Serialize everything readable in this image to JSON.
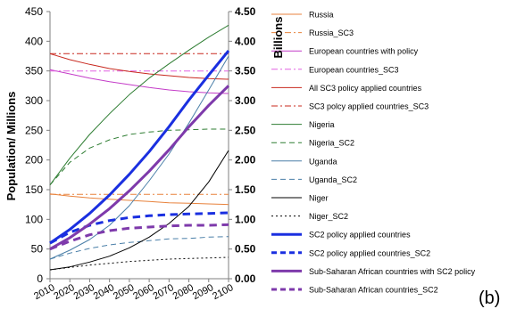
{
  "panel_label": "(b)",
  "chart_data": {
    "type": "line",
    "title": "",
    "xlabel": "",
    "ylabel": "Population/ Millions",
    "ylabel_right": "Billions",
    "x_ticks": [
      2010,
      2020,
      2030,
      2040,
      2050,
      2060,
      2070,
      2080,
      2090,
      2100
    ],
    "xlim": [
      2010,
      2100
    ],
    "ylim": [
      0,
      450
    ],
    "ylim_right": [
      0,
      4.5
    ],
    "y_ticks": [
      "0",
      "50",
      "100",
      "150",
      "200",
      "250",
      "300",
      "350",
      "400",
      "450"
    ],
    "y_ticks_right": [
      "0.00",
      "0.50",
      "1.00",
      "1.50",
      "2.00",
      "2.50",
      "3.00",
      "3.50",
      "4.00",
      "4.50"
    ],
    "grid": false,
    "legend_position": "right",
    "x": [
      2010,
      2020,
      2030,
      2040,
      2050,
      2060,
      2070,
      2080,
      2090,
      2100
    ],
    "series": [
      {
        "name": "Russia",
        "axis": "left",
        "color": "#e8823c",
        "dash": "solid",
        "width": 1,
        "values": [
          143,
          139,
          136,
          134,
          132,
          130,
          128,
          127,
          126,
          125
        ]
      },
      {
        "name": "Russia_SC3",
        "axis": "left",
        "color": "#e8823c",
        "dash": "dashdot",
        "width": 1,
        "values": [
          142,
          142,
          142,
          142,
          142,
          142,
          142,
          142,
          142,
          142
        ]
      },
      {
        "name": "European countries with policy",
        "axis": "left",
        "color": "#c43cc8",
        "dash": "solid",
        "width": 1,
        "values": [
          352,
          345,
          338,
          332,
          327,
          322,
          318,
          315,
          313,
          312
        ]
      },
      {
        "name": "European countries_SC3",
        "axis": "left",
        "color": "#e060e0",
        "dash": "dashdot",
        "width": 1,
        "values": [
          350,
          350,
          350,
          350,
          350,
          350,
          350,
          350,
          350,
          350
        ]
      },
      {
        "name": "All SC3 policy applied countries",
        "axis": "left",
        "color": "#c8281e",
        "dash": "solid",
        "width": 1,
        "values": [
          379,
          369,
          361,
          354,
          349,
          345,
          342,
          339,
          337,
          336
        ]
      },
      {
        "name": "SC3 polcy applied countries_SC3",
        "axis": "left",
        "color": "#c8281e",
        "dash": "dashdot",
        "width": 1,
        "values": [
          379,
          379,
          379,
          379,
          379,
          379,
          379,
          379,
          379,
          379
        ]
      },
      {
        "name": "Nigeria",
        "axis": "left",
        "color": "#2e7d32",
        "dash": "solid",
        "width": 1,
        "values": [
          158,
          203,
          243,
          278,
          310,
          338,
          362,
          385,
          407,
          427
        ]
      },
      {
        "name": "Nigeria_SC2",
        "axis": "left",
        "color": "#2e7d32",
        "dash": "dash",
        "width": 1,
        "values": [
          158,
          196,
          220,
          234,
          243,
          247,
          250,
          251,
          252,
          252
        ]
      },
      {
        "name": "Uganda",
        "axis": "left",
        "color": "#4a7fa8",
        "dash": "solid",
        "width": 1,
        "values": [
          33,
          48,
          66,
          90,
          123,
          165,
          210,
          262,
          318,
          375
        ]
      },
      {
        "name": "Uganda_SC2",
        "axis": "left",
        "color": "#4a7fa8",
        "dash": "dash",
        "width": 1,
        "values": [
          33,
          43,
          51,
          57,
          61,
          64,
          67,
          68,
          70,
          71
        ]
      },
      {
        "name": "Niger",
        "axis": "left",
        "color": "#000000",
        "dash": "solid",
        "width": 1,
        "values": [
          15,
          20,
          28,
          38,
          52,
          70,
          93,
          122,
          163,
          216
        ]
      },
      {
        "name": "Niger_SC2",
        "axis": "left",
        "color": "#000000",
        "dash": "dot",
        "width": 1,
        "values": [
          15,
          19,
          23,
          26,
          29,
          31,
          33,
          34,
          35,
          36
        ]
      },
      {
        "name": "SC2 policy applied countries",
        "axis": "right",
        "color": "#1a2fe0",
        "dash": "solid",
        "width": 3,
        "values": [
          0.6,
          0.83,
          1.1,
          1.41,
          1.76,
          2.14,
          2.56,
          3.01,
          3.43,
          3.84
        ]
      },
      {
        "name": "SC2 policy applied countries_SC2",
        "axis": "right",
        "color": "#1a2fe0",
        "dash": "dash",
        "width": 3,
        "values": [
          0.6,
          0.78,
          0.9,
          0.98,
          1.03,
          1.06,
          1.08,
          1.09,
          1.1,
          1.11
        ]
      },
      {
        "name": "Sub-Saharan African countries with SC2 policy",
        "axis": "right",
        "color": "#7e3aab",
        "dash": "solid",
        "width": 3,
        "values": [
          0.5,
          0.69,
          0.92,
          1.18,
          1.48,
          1.81,
          2.17,
          2.56,
          2.92,
          3.25
        ]
      },
      {
        "name": "Sub-Saharan African countries_SC2",
        "axis": "right",
        "color": "#7e3aab",
        "dash": "dash",
        "width": 3,
        "values": [
          0.5,
          0.63,
          0.74,
          0.81,
          0.85,
          0.87,
          0.89,
          0.9,
          0.9,
          0.91
        ]
      }
    ]
  }
}
